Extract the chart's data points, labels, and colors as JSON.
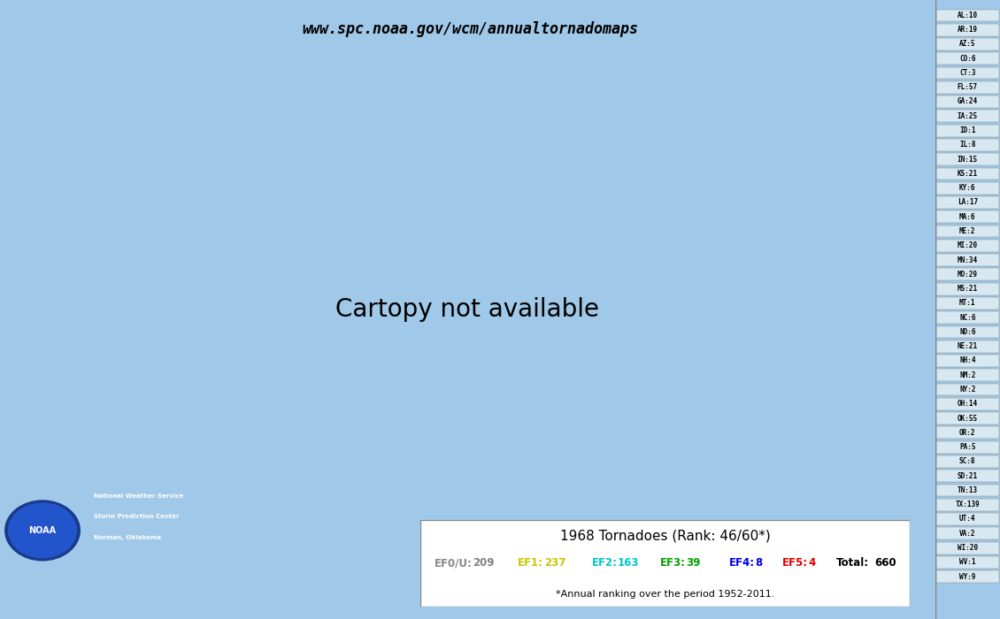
{
  "title_url": "www.spc.noaa.gov/wcm/annualtornadomaps",
  "year": "1968",
  "rank": "46/60*",
  "rank_note": "*Annual ranking over the period 1952-2011.",
  "total": 660,
  "ef_counts": {
    "EF0/U": 209,
    "EF1": 237,
    "EF2": 163,
    "EF3": 39,
    "EF4": 8,
    "EF5": 4
  },
  "ef_colors": {
    "EF0/U": "#808080",
    "EF1": "#c8c800",
    "EF2": "#00c8c8",
    "EF3": "#00a000",
    "EF4": "#0000e0",
    "EF5": "#e00000"
  },
  "state_counts": [
    [
      "AL",
      10
    ],
    [
      "AR",
      19
    ],
    [
      "AZ",
      5
    ],
    [
      "CO",
      6
    ],
    [
      "CT",
      3
    ],
    [
      "FL",
      57
    ],
    [
      "GA",
      24
    ],
    [
      "IA",
      25
    ],
    [
      "ID",
      1
    ],
    [
      "IL",
      8
    ],
    [
      "IN",
      15
    ],
    [
      "KS",
      21
    ],
    [
      "KY",
      6
    ],
    [
      "LA",
      17
    ],
    [
      "MA",
      6
    ],
    [
      "ME",
      2
    ],
    [
      "MI",
      20
    ],
    [
      "MN",
      34
    ],
    [
      "MO",
      29
    ],
    [
      "MS",
      21
    ],
    [
      "MT",
      1
    ],
    [
      "NC",
      6
    ],
    [
      "ND",
      6
    ],
    [
      "NE",
      21
    ],
    [
      "NH",
      4
    ],
    [
      "NM",
      2
    ],
    [
      "NY",
      2
    ],
    [
      "OH",
      14
    ],
    [
      "OK",
      55
    ],
    [
      "OR",
      2
    ],
    [
      "PA",
      5
    ],
    [
      "SC",
      8
    ],
    [
      "SD",
      21
    ],
    [
      "TN",
      13
    ],
    [
      "TX",
      139
    ],
    [
      "UT",
      4
    ],
    [
      "VA",
      2
    ],
    [
      "WI",
      20
    ],
    [
      "WV",
      1
    ],
    [
      "WY",
      9
    ]
  ],
  "map_bg": "#a0c8e8",
  "land_color": "#ffffff",
  "state_border_color": "#808080",
  "us_border_color": "#505050",
  "sidebar_bg": "#c8dce8",
  "legend_box_bg": "#ffffff"
}
